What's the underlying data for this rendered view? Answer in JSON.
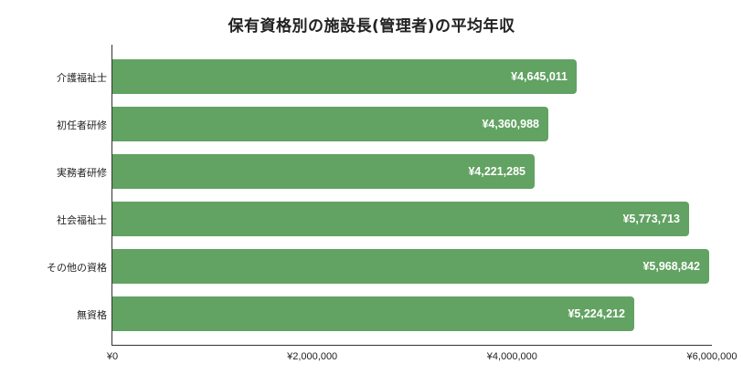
{
  "chart_data": {
    "type": "bar",
    "orientation": "horizontal",
    "title": "保有資格別の施設長(管理者)の平均年収",
    "categories": [
      "介護福祉士",
      "初任者研修",
      "実務者研修",
      "社会福祉士",
      "その他の資格",
      "無資格"
    ],
    "values": [
      4645011,
      4360988,
      4221285,
      5773713,
      5968842,
      5224212
    ],
    "value_labels": [
      "¥4,645,011",
      "¥4,360,988",
      "¥4,221,285",
      "¥5,773,713",
      "¥5,968,842",
      "¥5,224,212"
    ],
    "xlabel": "",
    "ylabel": "",
    "xlim": [
      0,
      6000000
    ],
    "x_ticks": [
      "¥0",
      "¥2,000,000",
      "¥4,000,000",
      "¥6,000,000"
    ],
    "grid": false,
    "legend": "none",
    "bar_color": "#62a262"
  }
}
